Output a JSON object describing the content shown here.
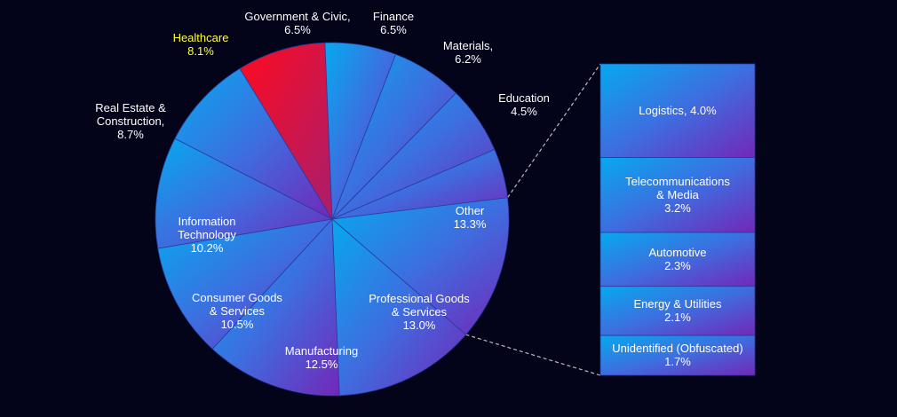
{
  "chart_data": {
    "type": "pie",
    "title": "",
    "slices": [
      {
        "label_lines": [
          "Healthcare",
          "8.1%"
        ],
        "value": 8.1,
        "highlight": true
      },
      {
        "label_lines": [
          "Government & Civic,",
          "6.5%"
        ],
        "value": 6.5
      },
      {
        "label_lines": [
          "Finance",
          "6.5%"
        ],
        "value": 6.5
      },
      {
        "label_lines": [
          "Materials,",
          "6.2%"
        ],
        "value": 6.2
      },
      {
        "label_lines": [
          "Education",
          "4.5%"
        ],
        "value": 4.5
      },
      {
        "label_lines": [
          "Other",
          "13.3%"
        ],
        "value": 13.3
      },
      {
        "label_lines": [
          "Professional Goods",
          "& Services",
          "13.0%"
        ],
        "value": 13.0
      },
      {
        "label_lines": [
          "Manufacturing",
          "12.5%"
        ],
        "value": 12.5
      },
      {
        "label_lines": [
          "Consumer Goods",
          "& Services",
          "10.5%"
        ],
        "value": 10.5
      },
      {
        "label_lines": [
          "Information",
          "Technology",
          "10.2%"
        ],
        "value": 10.2
      },
      {
        "label_lines": [
          "Real Estate &",
          "Construction,",
          "8.7%"
        ],
        "value": 8.7
      }
    ],
    "breakdown_of": "Other",
    "breakdown": [
      {
        "label_lines": [
          "Logistics, 4.0%"
        ],
        "value": 4.0
      },
      {
        "label_lines": [
          "Telecommunications",
          "& Media",
          "3.2%"
        ],
        "value": 3.2
      },
      {
        "label_lines": [
          "Automotive",
          "2.3%"
        ],
        "value": 2.3
      },
      {
        "label_lines": [
          "Energy & Utilities",
          "2.1%"
        ],
        "value": 2.1
      },
      {
        "label_lines": [
          "Unidentified (Obfuscated)",
          "1.7%"
        ],
        "value": 1.7
      }
    ],
    "colors": {
      "background": "#03031a",
      "slice_gradient_start": "#06a9ee",
      "slice_gradient_mid": "#3d6ee0",
      "slice_gradient_end": "#7327b8",
      "highlight_start": "#ff0a1e",
      "highlight_end": "#a81e6e",
      "highlight_label": "#ffff33",
      "label": "#ffffff",
      "connector": "#bbbbbb"
    }
  }
}
